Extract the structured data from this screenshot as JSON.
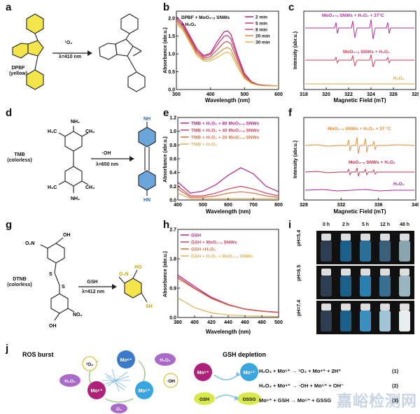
{
  "panels": {
    "a": {
      "letter": "a",
      "reagent": "¹O₂",
      "condition": "λ=410 nm",
      "compound": "DPBF",
      "compound_note": "(yellow)"
    },
    "b": {
      "letter": "b",
      "legend_title": "DPBF + MoO₃₋ₓ SNWs",
      "legend_title2": "+ H₂O₂",
      "xlabel": "Wavelength (nm)",
      "ylabel": "Absorbance (abr.u.)",
      "xticks": [
        "300",
        "400",
        "500",
        "600"
      ],
      "yticks": [
        "0.0",
        "0.5",
        "1.0",
        "1.5",
        "2.0"
      ]
    },
    "c": {
      "letter": "c",
      "xlabel": "Magnetic Field (mT)",
      "ylabel": "Intensity (abr.u.)",
      "xticks": [
        "318",
        "320",
        "322",
        "324",
        "326",
        "328"
      ]
    },
    "d": {
      "letter": "d",
      "compound": "TMB",
      "compound_note": "(colorless)",
      "reagent": "·OH",
      "condition": "λ=650 nm"
    },
    "e": {
      "letter": "e",
      "xlabel": "Wavelength (nm)",
      "ylabel": "Absorbance (abr.u.)",
      "xticks": [
        "400",
        "500",
        "600",
        "700",
        "800"
      ],
      "yticks": [
        "0.0",
        "0.2",
        "0.4",
        "0.6",
        "0.8",
        "1.0",
        "1.2"
      ]
    },
    "f": {
      "letter": "f",
      "xlabel": "Magnetic Field (mT)",
      "ylabel": "Intensity (abr.u.)",
      "xticks": [
        "328",
        "332",
        "336",
        "340"
      ]
    },
    "g": {
      "letter": "g",
      "compound": "DTNB",
      "compound_note": "(colorless)",
      "reagent": "GSH",
      "condition": "λ=412 nm"
    },
    "h": {
      "letter": "h",
      "xlabel": "Wavelength (nm)",
      "ylabel": "Absorbance (abr.u.)",
      "xticks": [
        "380",
        "400",
        "420",
        "440",
        "460",
        "480",
        "500"
      ],
      "yticks": [
        "0.0",
        "0.9",
        "1.8",
        "2.7"
      ]
    },
    "i": {
      "letter": "i",
      "times": [
        "0 h",
        "2 h",
        "5 h",
        "12 h",
        "48 h"
      ],
      "rows": [
        "pH=5.4",
        "pH=6.5",
        "pH=7.4"
      ]
    },
    "j": {
      "letter": "j",
      "ros_title": "ROS burst",
      "gsh_title": "GSH depletion",
      "nodes": {
        "o2s": "¹O₂",
        "mo6a": "Mo⁶⁺",
        "h2o2a": "H₂O₂",
        "h2o2b": "H₂O₂",
        "oh": "·OH",
        "mo6b": "Mo⁶⁺",
        "mo5": "Mo⁵⁺",
        "o2": "O₂",
        "gmo6": "Mo⁶⁺",
        "gmo5": "Mo⁵⁺",
        "gsh": "GSH",
        "gssg": "GSSG"
      },
      "equations": [
        {
          "text": "H₂O₂ + Mo⁶⁺ → ¹O₂ + Mo⁴⁺ + 2H⁺",
          "num": "(1)"
        },
        {
          "text": "H₂O₂ + Mo⁴⁺ → ·OH + Mo⁵⁺ + OH⁻",
          "num": "(2)"
        },
        {
          "text": "Mo⁶⁺ + GSH → Mo⁵⁺ + GSSG",
          "num": "(3)"
        }
      ]
    }
  },
  "chart_data": [
    {
      "panel": "b",
      "type": "line",
      "xlabel": "Wavelength (nm)",
      "ylabel": "Absorbance (abr.u.)",
      "xlim": [
        300,
        600
      ],
      "ylim": [
        0,
        2.2
      ],
      "x": [
        300,
        320,
        340,
        360,
        380,
        400,
        420,
        440,
        450,
        460,
        480,
        500,
        520,
        540,
        560,
        580,
        600
      ],
      "series": [
        {
          "name": "2 min",
          "color": "#b0207a",
          "values": [
            2.05,
            1.85,
            1.5,
            1.15,
            0.95,
            1.02,
            1.35,
            1.62,
            1.65,
            1.55,
            0.95,
            0.45,
            0.22,
            0.14,
            0.12,
            0.11,
            0.1
          ]
        },
        {
          "name": "5 min",
          "color": "#d0357a",
          "values": [
            2.0,
            1.8,
            1.45,
            1.1,
            0.92,
            0.98,
            1.25,
            1.5,
            1.52,
            1.42,
            0.88,
            0.42,
            0.21,
            0.13,
            0.11,
            0.1,
            0.1
          ]
        },
        {
          "name": "8 min",
          "color": "#c0504a",
          "values": [
            1.95,
            1.75,
            1.4,
            1.05,
            0.88,
            0.92,
            1.12,
            1.32,
            1.35,
            1.28,
            0.8,
            0.38,
            0.2,
            0.13,
            0.11,
            0.1,
            0.1
          ]
        },
        {
          "name": "20 min",
          "color": "#d88a40",
          "values": [
            1.9,
            1.7,
            1.35,
            1.0,
            0.84,
            0.86,
            1.0,
            1.15,
            1.18,
            1.12,
            0.7,
            0.34,
            0.18,
            0.12,
            0.11,
            0.1,
            0.1
          ]
        },
        {
          "name": "30 min",
          "color": "#e0b850",
          "values": [
            1.85,
            1.65,
            1.3,
            0.95,
            0.8,
            0.8,
            0.9,
            1.02,
            1.05,
            1.0,
            0.62,
            0.3,
            0.17,
            0.12,
            0.1,
            0.1,
            0.1
          ]
        }
      ]
    },
    {
      "panel": "c",
      "type": "line",
      "xlabel": "Magnetic Field (mT)",
      "ylabel": "Intensity (abr.u.)",
      "xlim": [
        318,
        328
      ],
      "series": [
        {
          "name": "MoO₃₋ₓ SNWs + H₂O₂ + 37°C",
          "color": "#b0309a"
        },
        {
          "name": "MoO₃₋ₓ SNWs + H₂O₂",
          "color": "#d0405a"
        },
        {
          "name": "H₂O₂",
          "color": "#e0a040"
        }
      ]
    },
    {
      "panel": "e",
      "type": "line",
      "xlabel": "Wavelength (nm)",
      "ylabel": "Absorbance (abr.u.)",
      "xlim": [
        400,
        800
      ],
      "ylim": [
        0,
        1.2
      ],
      "x": [
        400,
        450,
        500,
        550,
        600,
        650,
        700,
        750,
        800
      ],
      "series": [
        {
          "name": "TMB + H₂O₂ + 80 MoO₃₋ₓ SNWs",
          "color": "#b0208a",
          "values": [
            0.26,
            0.1,
            0.13,
            0.22,
            0.36,
            0.47,
            0.38,
            0.2,
            0.12
          ]
        },
        {
          "name": "TMB + H₂O₂ + 40 MoO₃₋ₓ SNWs",
          "color": "#d04060",
          "values": [
            0.2,
            0.06,
            0.06,
            0.1,
            0.16,
            0.2,
            0.16,
            0.1,
            0.06
          ]
        },
        {
          "name": "TMB + H₂O₂ + 20 MoO₃₋ₓ SNWs",
          "color": "#d87040",
          "values": [
            0.16,
            0.04,
            0.04,
            0.06,
            0.1,
            0.12,
            0.1,
            0.06,
            0.04
          ]
        },
        {
          "name": "TMB + H₂O₂",
          "color": "#e0b060",
          "values": [
            0.1,
            0.02,
            0.02,
            0.02,
            0.02,
            0.02,
            0.02,
            0.02,
            0.02
          ]
        }
      ]
    },
    {
      "panel": "f",
      "type": "line",
      "xlabel": "Magnetic Field (mT)",
      "ylabel": "Intensity (abr.u.)",
      "xlim": [
        328,
        340
      ],
      "series": [
        {
          "name": "MoO₃₋ₓ SNWs + H₂O₂ + 37 °C",
          "color": "#e08a30"
        },
        {
          "name": "MoO₃₋ₓ SNWs + H₂O₂",
          "color": "#c03050"
        },
        {
          "name": "H₂O₂",
          "color": "#b0209a"
        }
      ]
    },
    {
      "panel": "h",
      "type": "line",
      "xlabel": "Wavelength (nm)",
      "ylabel": "Absorbance (abr.u.)",
      "xlim": [
        380,
        500
      ],
      "ylim": [
        0,
        2.7
      ],
      "x": [
        380,
        400,
        420,
        440,
        460,
        480,
        500
      ],
      "series": [
        {
          "name": "GSH",
          "color": "#b0208a",
          "values": [
            1.3,
            0.95,
            0.62,
            0.4,
            0.26,
            0.2,
            0.16
          ]
        },
        {
          "name": "GSH + MoO₃₋ₓ SNWs",
          "color": "#d04060",
          "values": [
            1.25,
            0.9,
            0.6,
            0.39,
            0.25,
            0.19,
            0.15
          ]
        },
        {
          "name": "GSH +H₂O₂",
          "color": "#d07040",
          "values": [
            1.2,
            0.88,
            0.58,
            0.38,
            0.25,
            0.19,
            0.15
          ]
        },
        {
          "name": "GSH + H₂O₂ + MoO₃₋ₓ SNWs",
          "color": "#e0b050",
          "values": [
            0.6,
            0.3,
            0.14,
            0.08,
            0.05,
            0.04,
            0.03
          ]
        }
      ]
    }
  ]
}
